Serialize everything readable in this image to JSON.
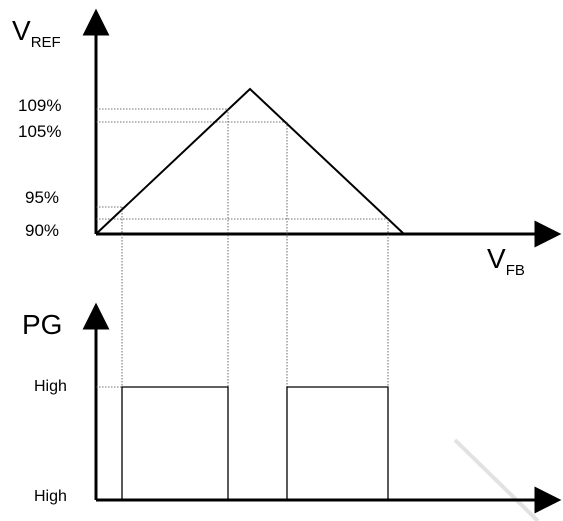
{
  "top_chart": {
    "y_axis_label": {
      "main": "V",
      "sub": "REF"
    },
    "x_axis_label": {
      "main": "V",
      "sub": "FB"
    },
    "levels": [
      {
        "id": "p109",
        "label": "109%"
      },
      {
        "id": "p105",
        "label": "105%"
      },
      {
        "id": "p95",
        "label": "95%"
      },
      {
        "id": "p90",
        "label": "90%"
      }
    ]
  },
  "bottom_chart": {
    "y_axis_label": "PG",
    "levels": [
      {
        "id": "high_top",
        "label": "High"
      },
      {
        "id": "high_bottom",
        "label": "High"
      }
    ]
  },
  "colors": {
    "line": "#000000",
    "dotted": "#444444",
    "watermark": "#e2e2e2"
  }
}
